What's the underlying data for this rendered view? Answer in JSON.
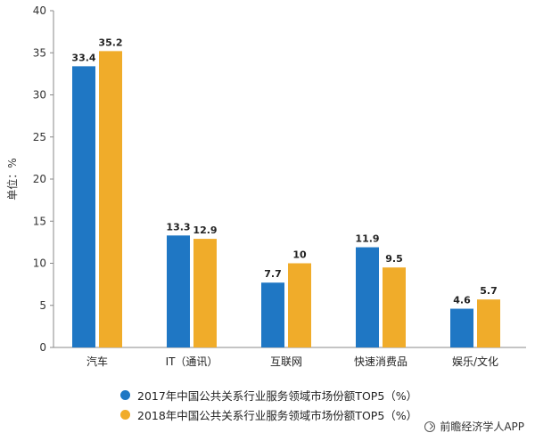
{
  "chart_data": {
    "type": "bar",
    "ylabel": "单位：%",
    "ylim": [
      0,
      40
    ],
    "yticks": [
      0,
      5,
      10,
      15,
      20,
      25,
      30,
      35,
      40
    ],
    "categories": [
      "汽车",
      "IT（通讯）",
      "互联网",
      "快速消费品",
      "娱乐/文化"
    ],
    "series": [
      {
        "name": "2017年中国公共关系行业服务领域市场份额TOP5（%）",
        "color": "#1f77c4",
        "values": [
          33.4,
          13.3,
          7.7,
          11.9,
          4.6
        ]
      },
      {
        "name": "2018年中国公共关系行业服务领域市场份额TOP5（%）",
        "color": "#f0ac2a",
        "values": [
          35.2,
          12.9,
          10,
          9.5,
          5.7
        ]
      }
    ],
    "grid": false,
    "legend_position": "bottom-left"
  },
  "source": "前瞻经济学人APP"
}
